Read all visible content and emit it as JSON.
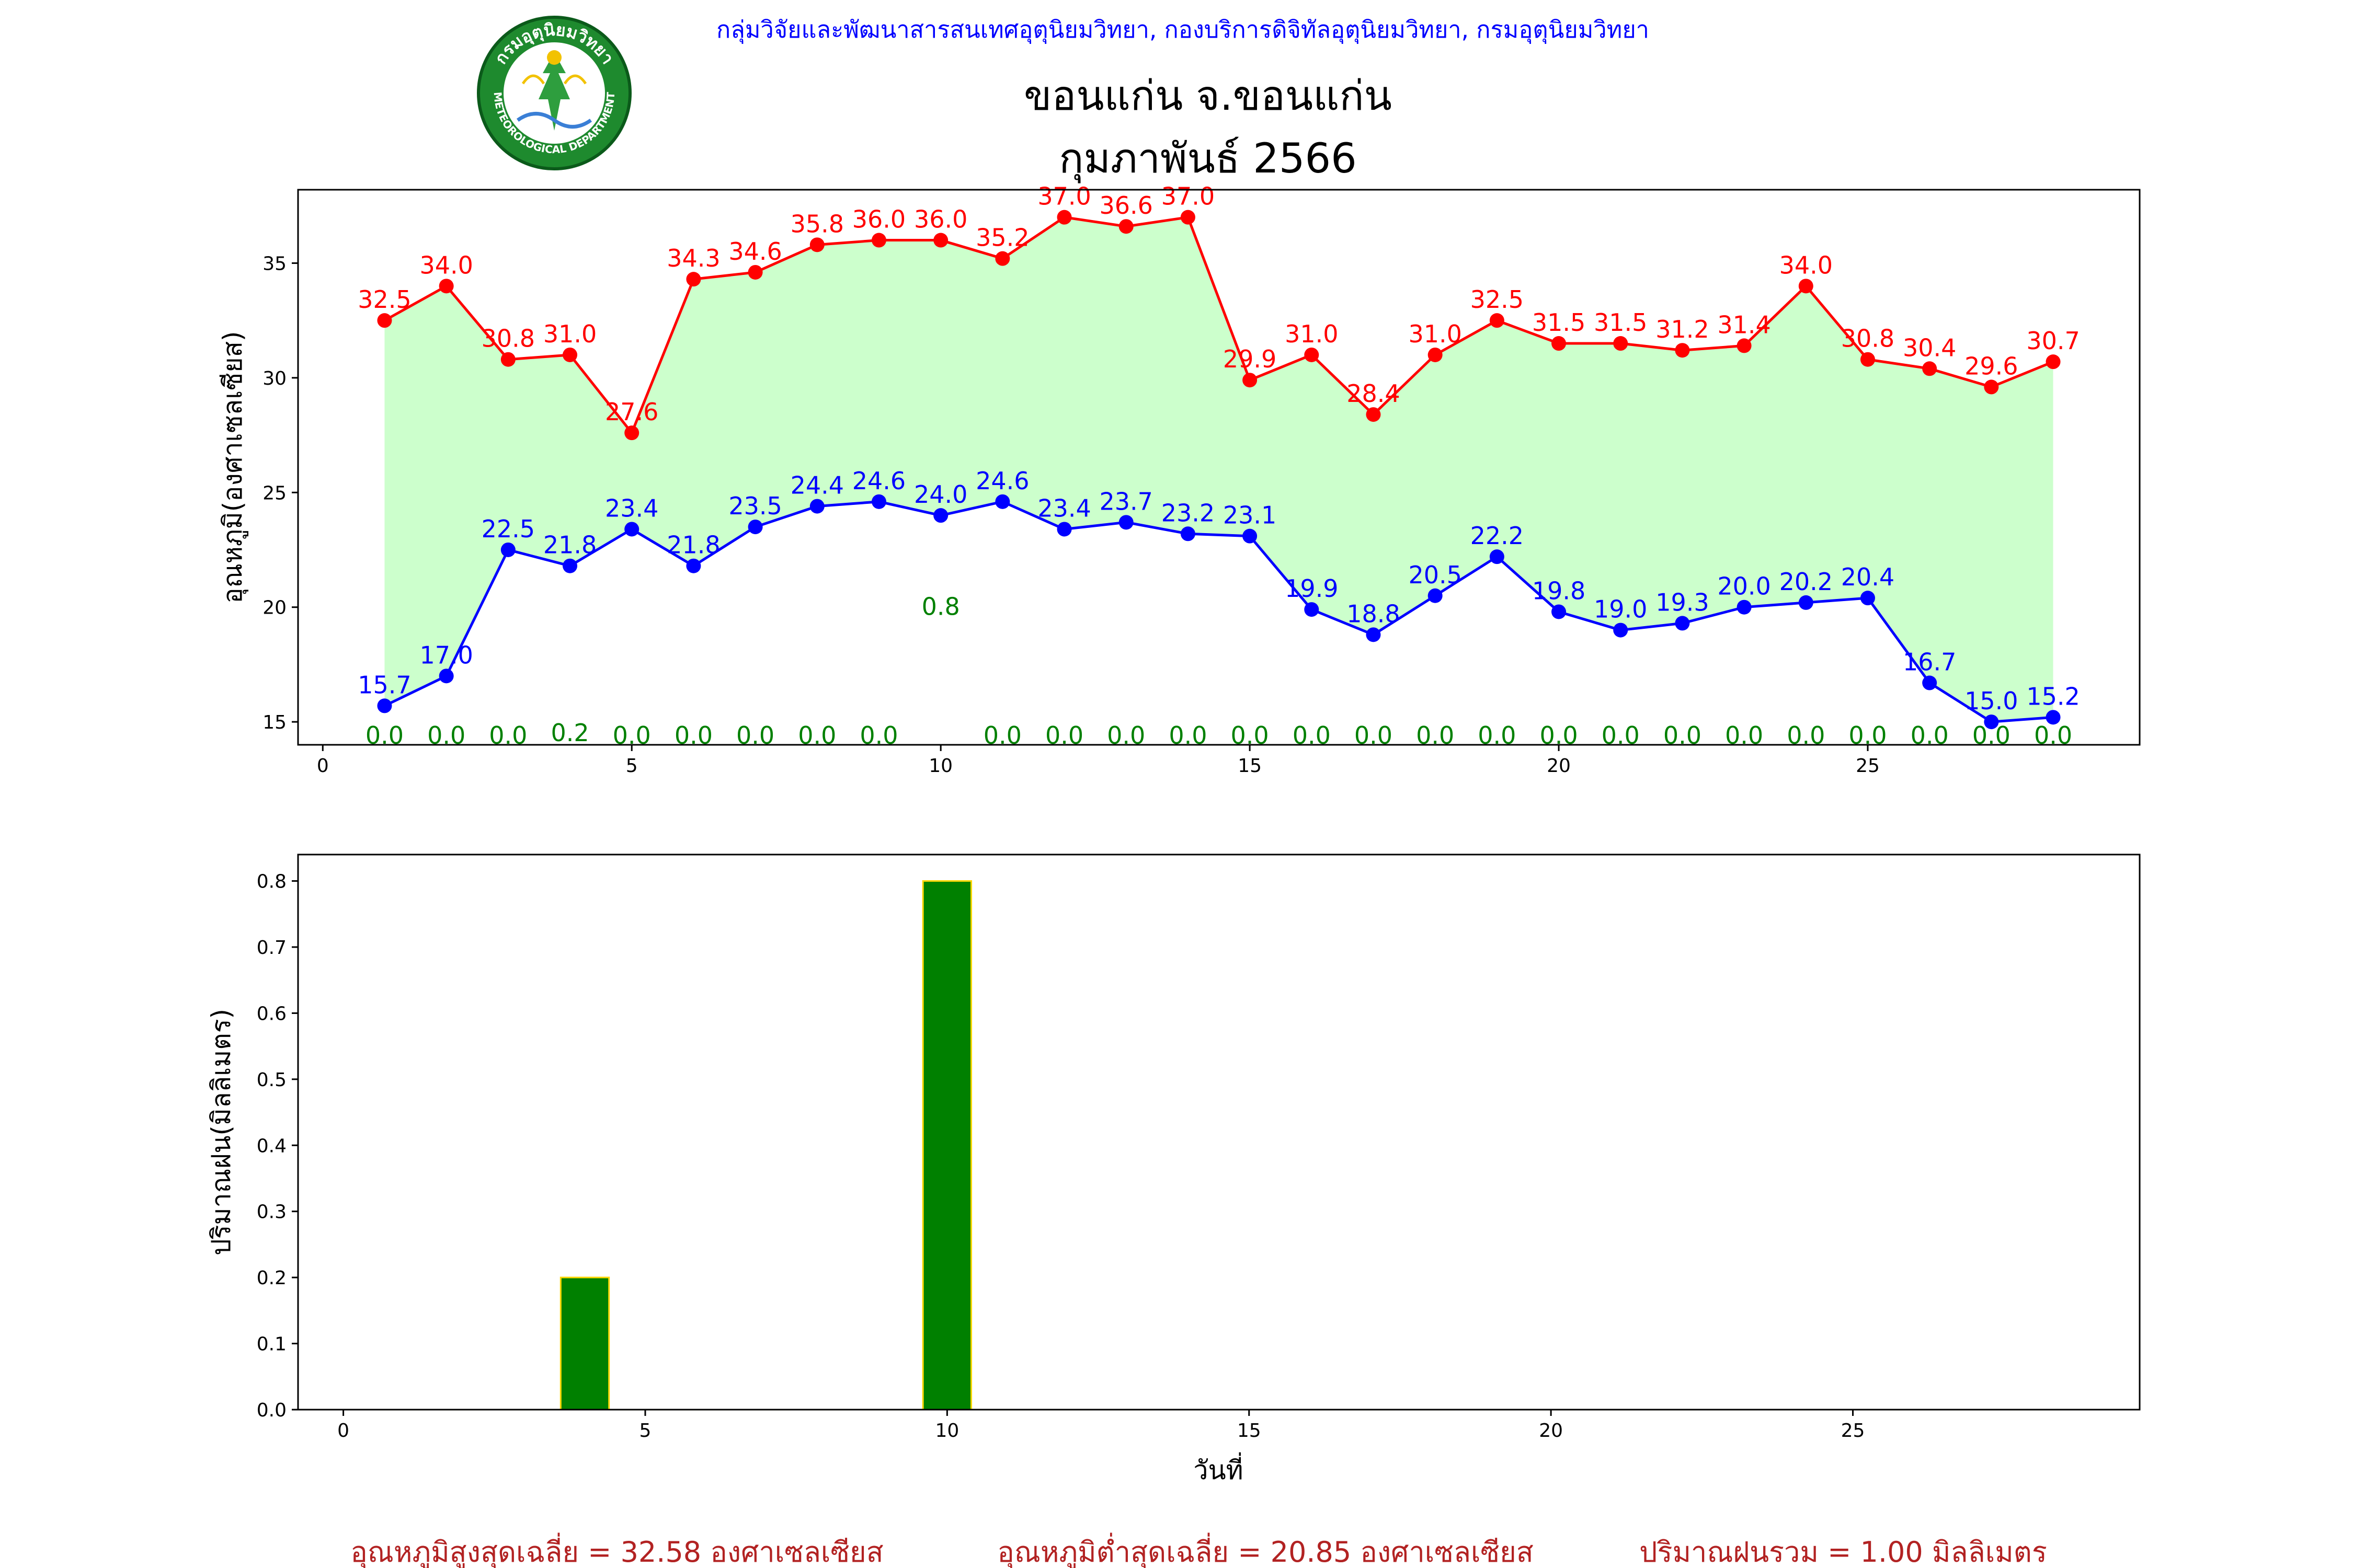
{
  "header": {
    "org_line": "กลุ่มวิจัยและพัฒนาสารสนเทศอุตุนิยมวิทยา, กองบริการดิจิทัลอุตุนิยมวิทยา, กรมอุตุนิยมวิทยา",
    "station": "ขอนแก่น จ.ขอนแก่น",
    "period": "กุมภาพันธ์ 2566",
    "logo_top_text": "กรมอุตุนิยมวิทยา",
    "logo_bottom_text": "METEOROLOGICAL DEPARTMENT"
  },
  "colors": {
    "max": "#ff0000",
    "min": "#0000ff",
    "fill": "#ccffcc",
    "rain_bar": "#008000",
    "rain_edge": "#ffd700",
    "rain_label": "#008000",
    "header_blue": "#0000ff",
    "summary": "#b22222"
  },
  "chart_data": [
    {
      "type": "line",
      "ylabel": "อุณหภูมิ(องศาเซลเซียส)",
      "xlabel": "",
      "x": [
        1,
        2,
        3,
        4,
        5,
        6,
        7,
        8,
        9,
        10,
        11,
        12,
        13,
        14,
        15,
        16,
        17,
        18,
        19,
        20,
        21,
        22,
        23,
        24,
        25,
        26,
        27,
        28
      ],
      "xlim": [
        -0.4,
        29.4
      ],
      "ylim": [
        14,
        38.2
      ],
      "xticks": [
        0,
        5,
        10,
        15,
        20,
        25
      ],
      "yticks": [
        15,
        20,
        25,
        30,
        35
      ],
      "grid": false,
      "series": [
        {
          "values": [
            32.5,
            34.0,
            30.8,
            31.0,
            27.6,
            34.3,
            34.6,
            35.8,
            36.0,
            36.0,
            35.2,
            37.0,
            36.6,
            37.0,
            29.9,
            31.0,
            28.4,
            31.0,
            32.5,
            31.5,
            31.5,
            31.2,
            31.4,
            34.0,
            30.8,
            30.4,
            29.6,
            30.7
          ]
        },
        {
          "values": [
            15.7,
            17.0,
            22.5,
            21.8,
            23.4,
            21.8,
            23.5,
            24.4,
            24.6,
            24.0,
            24.6,
            23.4,
            23.7,
            23.2,
            23.1,
            19.9,
            18.8,
            20.5,
            22.2,
            19.8,
            19.0,
            19.3,
            20.0,
            20.2,
            20.4,
            16.7,
            15.0,
            15.2
          ]
        }
      ],
      "rain_annotations": [
        0.0,
        0.0,
        0.0,
        0.2,
        0.0,
        0.0,
        0.0,
        0.0,
        0.0,
        0.8,
        0.0,
        0.0,
        0.0,
        0.0,
        0.0,
        0.0,
        0.0,
        0.0,
        0.0,
        0.0,
        0.0,
        0.0,
        0.0,
        0.0,
        0.0,
        0.0,
        0.0,
        0.0
      ]
    },
    {
      "type": "bar",
      "ylabel": "ปริมาณฝน(มิลลิเมตร)",
      "xlabel": "วันที่",
      "x": [
        1,
        2,
        3,
        4,
        5,
        6,
        7,
        8,
        9,
        10,
        11,
        12,
        13,
        14,
        15,
        16,
        17,
        18,
        19,
        20,
        21,
        22,
        23,
        24,
        25,
        26,
        27,
        28
      ],
      "values": [
        0.0,
        0.0,
        0.0,
        0.2,
        0.0,
        0.0,
        0.0,
        0.0,
        0.0,
        0.8,
        0.0,
        0.0,
        0.0,
        0.0,
        0.0,
        0.0,
        0.0,
        0.0,
        0.0,
        0.0,
        0.0,
        0.0,
        0.0,
        0.0,
        0.0,
        0.0,
        0.0,
        0.0
      ],
      "xlim": [
        -0.75,
        29.75
      ],
      "ylim": [
        0,
        0.84
      ],
      "xticks": [
        0,
        5,
        10,
        15,
        20,
        25
      ],
      "yticks": [
        0.0,
        0.1,
        0.2,
        0.3,
        0.4,
        0.5,
        0.6,
        0.7,
        0.8
      ],
      "grid": false
    }
  ],
  "summary": {
    "avg_max": "อุณหภูมิสูงสุดเฉลี่ย = 32.58 องศาเซลเซียส",
    "avg_min": "อุณหภูมิต่ำสุดเฉลี่ย = 20.85 องศาเซลเซียส",
    "total_rain": "ปริมาณฝนรวม = 1.00 มิลลิเมตร"
  }
}
